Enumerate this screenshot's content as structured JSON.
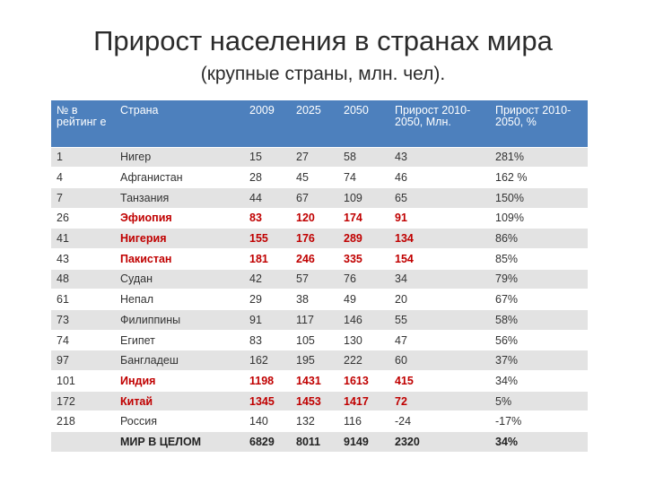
{
  "title": "Прирост населения в странах мира",
  "subtitle": "(крупные страны, млн. чел).",
  "columns": [
    "№ в рейтинг е",
    "Страна",
    "2009",
    "2025",
    "2050",
    "Прирост 2010-2050, Млн.",
    "Прирост 2010-2050, %"
  ],
  "rows": [
    {
      "rank": "1",
      "country": "Нигер",
      "y2009": "15",
      "y2025": "27",
      "y2050": "58",
      "growth_abs": "43",
      "growth_pct": "281%",
      "highlight": false
    },
    {
      "rank": "4",
      "country": "Афганистан",
      "y2009": "28",
      "y2025": "45",
      "y2050": "74",
      "growth_abs": "46",
      "growth_pct": "162 %",
      "highlight": false
    },
    {
      "rank": "7",
      "country": "Танзания",
      "y2009": "44",
      "y2025": "67",
      "y2050": "109",
      "growth_abs": "65",
      "growth_pct": "150%",
      "highlight": false
    },
    {
      "rank": "26",
      "country": "Эфиопия",
      "y2009": "83",
      "y2025": "120",
      "y2050": "174",
      "growth_abs": "91",
      "growth_pct": "109%",
      "highlight": true
    },
    {
      "rank": "41",
      "country": "Нигерия",
      "y2009": "155",
      "y2025": "176",
      "y2050": "289",
      "growth_abs": "134",
      "growth_pct": "86%",
      "highlight": true
    },
    {
      "rank": "43",
      "country": "Пакистан",
      "y2009": "181",
      "y2025": "246",
      "y2050": "335",
      "growth_abs": "154",
      "growth_pct": "85%",
      "highlight": true
    },
    {
      "rank": "48",
      "country": "Судан",
      "y2009": "42",
      "y2025": "57",
      "y2050": "76",
      "growth_abs": "34",
      "growth_pct": "79%",
      "highlight": false
    },
    {
      "rank": "61",
      "country": "Непал",
      "y2009": "29",
      "y2025": "38",
      "y2050": "49",
      "growth_abs": "20",
      "growth_pct": "67%",
      "highlight": false
    },
    {
      "rank": "73",
      "country": "Филиппины",
      "y2009": "91",
      "y2025": "117",
      "y2050": "146",
      "growth_abs": "55",
      "growth_pct": "58%",
      "highlight": false
    },
    {
      "rank": "74",
      "country": "Египет",
      "y2009": "83",
      "y2025": "105",
      "y2050": "130",
      "growth_abs": "47",
      "growth_pct": "56%",
      "highlight": false
    },
    {
      "rank": "97",
      "country": "Бангладеш",
      "y2009": "162",
      "y2025": "195",
      "y2050": "222",
      "growth_abs": "60",
      "growth_pct": "37%",
      "highlight": false
    },
    {
      "rank": "101",
      "country": "Индия",
      "y2009": "1198",
      "y2025": "1431",
      "y2050": "1613",
      "growth_abs": "415",
      "growth_pct": "34%",
      "highlight": true
    },
    {
      "rank": "172",
      "country": "Китай",
      "y2009": "1345",
      "y2025": "1453",
      "y2050": "1417",
      "growth_abs": "72",
      "growth_pct": "5%",
      "highlight": true
    },
    {
      "rank": "218",
      "country": "Россия",
      "y2009": "140",
      "y2025": "132",
      "y2050": "116",
      "growth_abs": "-24",
      "growth_pct": "-17%",
      "highlight": false
    }
  ],
  "total": {
    "rank": "",
    "country": "МИР В ЦЕЛОМ",
    "y2009": "6829",
    "y2025": "8011",
    "y2050": "9149",
    "growth_abs": "2320",
    "growth_pct": "34%"
  }
}
